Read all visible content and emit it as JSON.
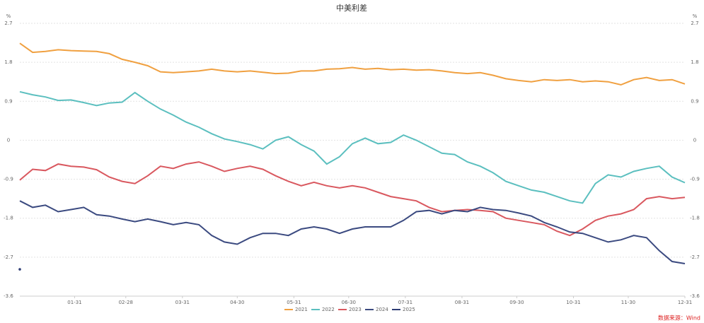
{
  "chart_data": {
    "type": "line",
    "title": "中美利差",
    "y_unit": "%",
    "source": "数据来源：Wind",
    "x": [
      1,
      8,
      15,
      22,
      29,
      36,
      43,
      50,
      57,
      64,
      71,
      78,
      85,
      92,
      99,
      106,
      113,
      120,
      127,
      134,
      141,
      148,
      155,
      162,
      169,
      176,
      183,
      190,
      197,
      204,
      211,
      218,
      225,
      232,
      239,
      246,
      253,
      260,
      267,
      274,
      281,
      288,
      295,
      302,
      309,
      316,
      323,
      330,
      337,
      344,
      351,
      358,
      365
    ],
    "xlim": [
      1,
      365
    ],
    "xticks": [
      {
        "value": 31,
        "label": "01-31"
      },
      {
        "value": 59,
        "label": "02-28"
      },
      {
        "value": 90,
        "label": "03-31"
      },
      {
        "value": 120,
        "label": "04-30"
      },
      {
        "value": 151,
        "label": "05-31"
      },
      {
        "value": 181,
        "label": "06-30"
      },
      {
        "value": 212,
        "label": "07-31"
      },
      {
        "value": 243,
        "label": "08-31"
      },
      {
        "value": 273,
        "label": "09-30"
      },
      {
        "value": 304,
        "label": "10-31"
      },
      {
        "value": 334,
        "label": "11-30"
      },
      {
        "value": 365,
        "label": "12-31"
      }
    ],
    "ylim": [
      -3.6,
      2.7
    ],
    "yticks": [
      2.7,
      1.8,
      0.9,
      0,
      -0.9,
      -1.8,
      -2.7,
      -3.6
    ],
    "grid": true,
    "legend": "bottom",
    "series": [
      {
        "name": "2021",
        "color": "#f0a040",
        "values": [
          2.24,
          2.03,
          2.05,
          2.09,
          2.07,
          2.06,
          2.05,
          2.0,
          1.87,
          1.8,
          1.72,
          1.58,
          1.56,
          1.58,
          1.6,
          1.64,
          1.6,
          1.58,
          1.6,
          1.57,
          1.54,
          1.55,
          1.6,
          1.6,
          1.64,
          1.65,
          1.68,
          1.64,
          1.66,
          1.63,
          1.64,
          1.62,
          1.63,
          1.6,
          1.56,
          1.54,
          1.56,
          1.5,
          1.42,
          1.38,
          1.35,
          1.4,
          1.38,
          1.4,
          1.35,
          1.37,
          1.35,
          1.28,
          1.4,
          1.45,
          1.38,
          1.4,
          1.3
        ]
      },
      {
        "name": "2022",
        "color": "#5bbfbf",
        "values": [
          1.12,
          1.05,
          1.0,
          0.92,
          0.93,
          0.87,
          0.8,
          0.86,
          0.88,
          1.1,
          0.9,
          0.72,
          0.58,
          0.42,
          0.3,
          0.15,
          0.03,
          -0.03,
          -0.1,
          -0.2,
          0.0,
          0.08,
          -0.1,
          -0.25,
          -0.55,
          -0.38,
          -0.08,
          0.05,
          -0.08,
          -0.05,
          0.12,
          0.0,
          -0.15,
          -0.3,
          -0.33,
          -0.5,
          -0.6,
          -0.75,
          -0.95,
          -1.05,
          -1.15,
          -1.2,
          -1.3,
          -1.4,
          -1.45,
          -1.0,
          -0.8,
          -0.85,
          -0.72,
          -0.65,
          -0.6,
          -0.85,
          -0.98
        ]
      },
      {
        "name": "2023",
        "color": "#d9585f",
        "values": [
          -0.92,
          -0.67,
          -0.7,
          -0.55,
          -0.6,
          -0.62,
          -0.68,
          -0.85,
          -0.95,
          -1.0,
          -0.82,
          -0.6,
          -0.65,
          -0.55,
          -0.5,
          -0.6,
          -0.72,
          -0.65,
          -0.6,
          -0.67,
          -0.82,
          -0.95,
          -1.05,
          -0.97,
          -1.05,
          -1.1,
          -1.05,
          -1.1,
          -1.2,
          -1.3,
          -1.35,
          -1.4,
          -1.55,
          -1.65,
          -1.62,
          -1.6,
          -1.62,
          -1.65,
          -1.8,
          -1.85,
          -1.9,
          -1.95,
          -2.1,
          -2.2,
          -2.05,
          -1.85,
          -1.75,
          -1.7,
          -1.6,
          -1.35,
          -1.3,
          -1.35,
          -1.32
        ]
      },
      {
        "name": "2024",
        "color": "#3b4a80",
        "values": [
          -1.4,
          -1.55,
          -1.5,
          -1.65,
          -1.6,
          -1.55,
          -1.72,
          -1.75,
          -1.82,
          -1.88,
          -1.82,
          -1.88,
          -1.95,
          -1.9,
          -1.95,
          -2.2,
          -2.35,
          -2.4,
          -2.25,
          -2.15,
          -2.15,
          -2.2,
          -2.05,
          -2.0,
          -2.05,
          -2.15,
          -2.05,
          -2.0,
          -2.0,
          -2.0,
          -1.85,
          -1.65,
          -1.62,
          -1.7,
          -1.62,
          -1.65,
          -1.55,
          -1.6,
          -1.62,
          -1.68,
          -1.75,
          -1.9,
          -2.0,
          -2.12,
          -2.15,
          -2.25,
          -2.35,
          -2.3,
          -2.2,
          -2.25,
          -2.55,
          -2.8,
          -2.85
        ]
      },
      {
        "name": "2025",
        "color": "#2f3d75",
        "values": [
          -2.98,
          null,
          null,
          null,
          null,
          null,
          null,
          null,
          null,
          null,
          null,
          null,
          null,
          null,
          null,
          null,
          null,
          null,
          null,
          null,
          null,
          null,
          null,
          null,
          null,
          null,
          null,
          null,
          null,
          null,
          null,
          null,
          null,
          null,
          null,
          null,
          null,
          null,
          null,
          null,
          null,
          null,
          null,
          null,
          null,
          null,
          null,
          null,
          null,
          null,
          null,
          null,
          null
        ]
      }
    ]
  }
}
